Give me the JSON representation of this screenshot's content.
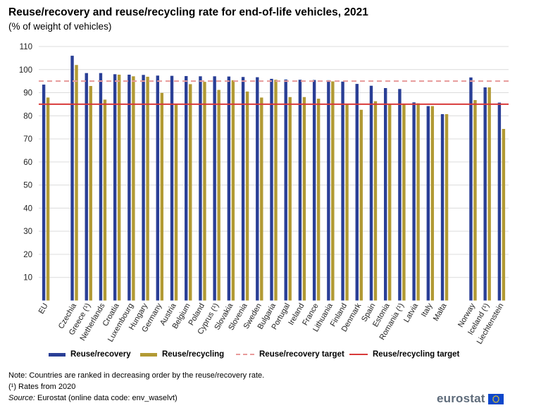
{
  "title": "Reuse/recovery and reuse/recycling rate for end-of-life vehicles, 2021",
  "subtitle": "(% of weight of vehicles)",
  "colors": {
    "recovery": "#2a3f96",
    "recycling": "#b29a34",
    "recovery_target": "#e89a9a",
    "recycling_target": "#d83a3a",
    "grid": "#dcdcdc"
  },
  "legend": {
    "recovery": "Reuse/recovery",
    "recycling": "Reuse/recycling",
    "recovery_target": "Reuse/recovery target",
    "recycling_target": "Reuse/recycling target"
  },
  "notes": {
    "note1": "Note: Countries are ranked in decreasing order by the reuse/recovery rate.",
    "note2": "(¹) Rates from 2020",
    "source_label": "Source:",
    "source_text": " Eurostat (online data code: env_waselvt)"
  },
  "logo": "eurostat",
  "chart_data": {
    "type": "bar",
    "ylim": [
      0,
      110
    ],
    "yticks": [
      10,
      20,
      30,
      40,
      50,
      60,
      70,
      80,
      90,
      100,
      110
    ],
    "grid": true,
    "legend_position": "bottom",
    "categories": [
      "EU",
      "Czechia",
      "Greece (¹)",
      "Netherlands",
      "Croatia",
      "Luxembourg",
      "Hungary",
      "Germany",
      "Austria",
      "Belgium",
      "Poland",
      "Cyprus (¹)",
      "Slovakia",
      "Slovenia",
      "Sweden",
      "Bulgaria",
      "Portugal",
      "Ireland",
      "France",
      "Lithuania",
      "Finland",
      "Denmark",
      "Spain",
      "Estonia",
      "Romania (¹)",
      "Latvia",
      "Italy",
      "Malta",
      "Norway",
      "Iceland (¹)",
      "Liechtenstein"
    ],
    "groups": [
      [
        0
      ],
      [
        1,
        2,
        3,
        4,
        5,
        6,
        7,
        8,
        9,
        10,
        11,
        12,
        13,
        14,
        15,
        16,
        17,
        18,
        19,
        20,
        21,
        22,
        23,
        24,
        25,
        26,
        27
      ],
      [
        28,
        29,
        30
      ]
    ],
    "series": [
      {
        "name": "Reuse/recovery",
        "values": [
          93.5,
          106,
          98.5,
          98.5,
          98,
          97.8,
          97.7,
          97.4,
          97.3,
          97.2,
          97.1,
          97.1,
          97.0,
          96.8,
          96.7,
          96.0,
          95.7,
          95.6,
          95.5,
          95.4,
          94.8,
          93.8,
          93.0,
          92.0,
          91.6,
          85.8,
          84.2,
          80.7,
          96.6,
          92.3,
          85.7
        ]
      },
      {
        "name": "Reuse/recycling",
        "values": [
          87.9,
          102,
          92.9,
          87.0,
          97.8,
          97.1,
          96.9,
          89.9,
          85.0,
          93.7,
          94.7,
          91.2,
          95.4,
          90.5,
          87.9,
          95.6,
          88.1,
          88.1,
          87.4,
          94.9,
          85.0,
          82.6,
          86.3,
          85.0,
          85.0,
          85.4,
          84.2,
          80.7,
          86.8,
          92.3,
          74.3
        ]
      }
    ],
    "targets": [
      {
        "name": "Reuse/recovery target",
        "value": 95,
        "style": "dashed"
      },
      {
        "name": "Reuse/recycling target",
        "value": 85,
        "style": "solid"
      }
    ]
  }
}
